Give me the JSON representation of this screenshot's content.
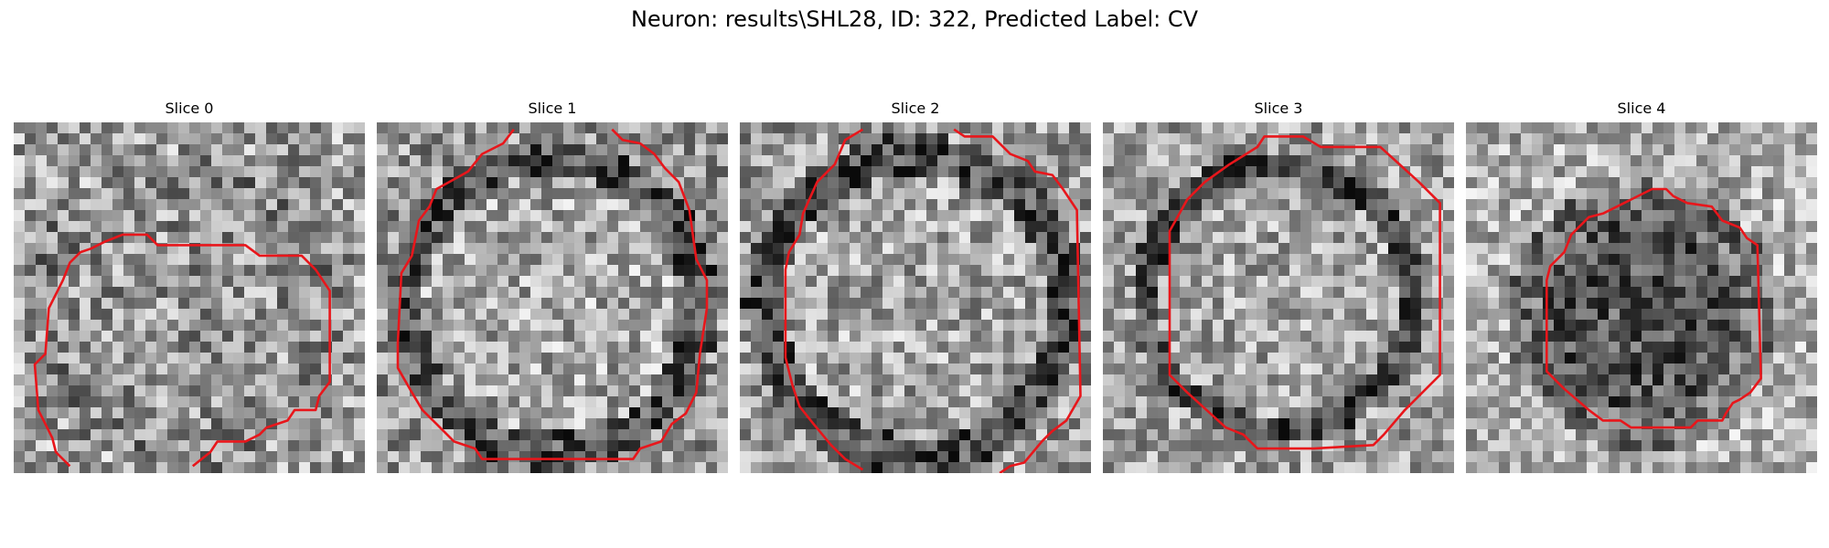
{
  "figure": {
    "title": "Neuron: results\\SHL28, ID: 322, Predicted Label: CV"
  },
  "panels": [
    {
      "title": "Slice 0"
    },
    {
      "title": "Slice 1"
    },
    {
      "title": "Slice 2"
    },
    {
      "title": "Slice 3"
    },
    {
      "title": "Slice 4"
    }
  ],
  "colors": {
    "contour": "#e8161b",
    "background": "#ffffff",
    "text": "#000000"
  }
}
